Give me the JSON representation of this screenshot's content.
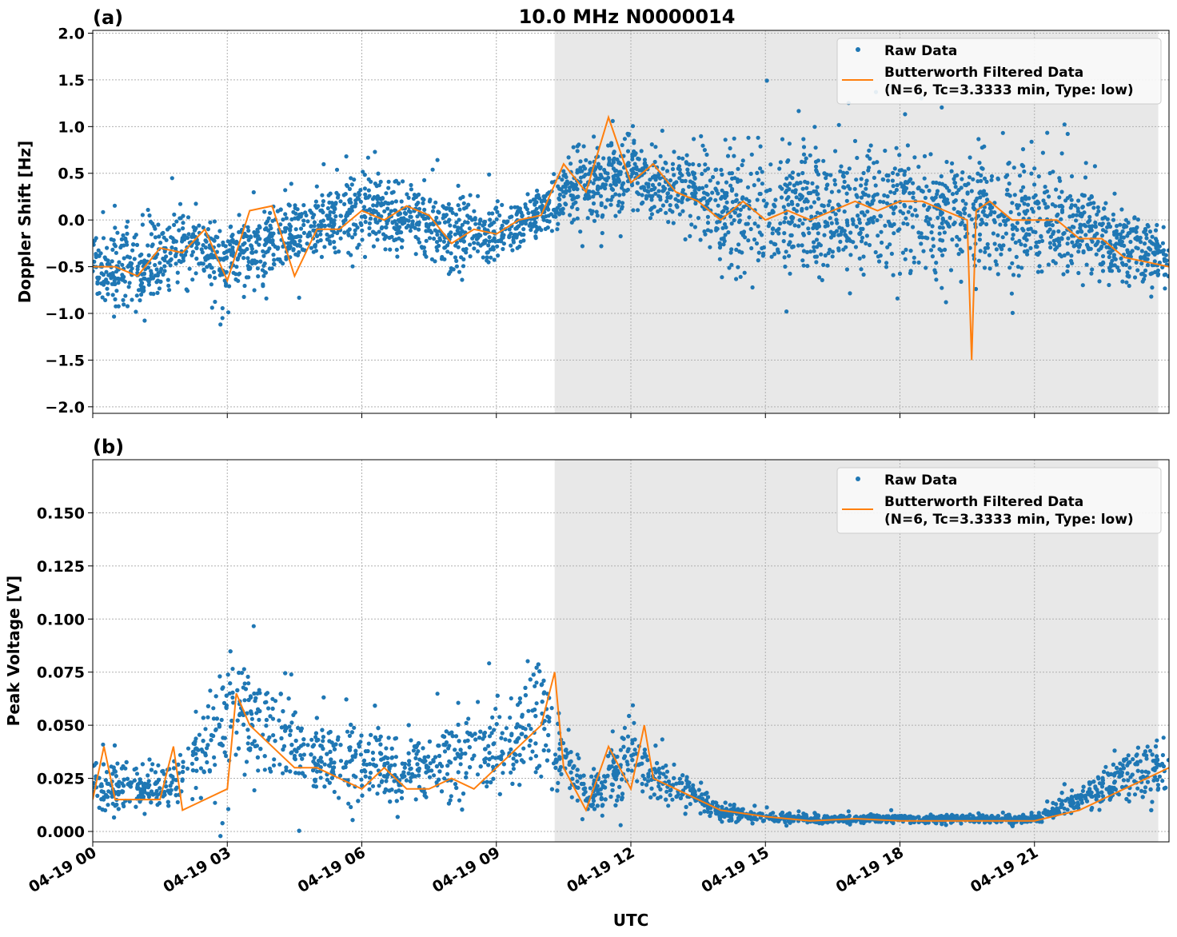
{
  "title": "10.0 MHz N0000014",
  "xlabel": "UTC",
  "shade_color": "#e8e8e8",
  "raw_color": "#1f77b4",
  "filtered_color": "#ff7f0e",
  "x_tick_labels": [
    "04-19 00",
    "04-19 03",
    "04-19 06",
    "04-19 09",
    "04-19 12",
    "04-19 15",
    "04-19 18",
    "04-19 21"
  ],
  "chart_data": [
    {
      "type": "scatter",
      "panel_label": "(a)",
      "ylabel": "Doppler Shift [Hz]",
      "xlim_hours": [
        0,
        24
      ],
      "ylim": [
        -2.07,
        2.03
      ],
      "yticks": [
        2.0,
        1.5,
        1.0,
        0.5,
        0.0,
        -0.5,
        -1.0,
        -1.5,
        -2.0
      ],
      "ytick_labels": [
        "2.0",
        "1.5",
        "1.0",
        "0.5",
        "0.0",
        "−0.5",
        "−1.0",
        "−1.5",
        "−2.0"
      ],
      "grid": true,
      "shaded_hours": [
        10.3,
        23.76
      ],
      "legend": {
        "placement": "top-right",
        "raw": "Raw Data",
        "filtered_line1": "Butterworth Filtered Data",
        "filtered_line2": "(N=6, Tc=3.3333 min, Type: low)"
      },
      "raw_envelope": {
        "x_hours": [
          0,
          1,
          2,
          3,
          4,
          5,
          6,
          7,
          8,
          9,
          10,
          11,
          12,
          13,
          14,
          15,
          16,
          17,
          18,
          19,
          20,
          21,
          22,
          23,
          24
        ],
        "low": [
          -0.9,
          -1.3,
          -0.8,
          -1.0,
          -0.8,
          -0.6,
          -0.4,
          -0.5,
          -0.7,
          -0.6,
          -0.2,
          -0.3,
          0.0,
          -0.3,
          -0.7,
          -0.9,
          -0.9,
          -0.9,
          -0.9,
          -0.9,
          -0.9,
          -0.8,
          -0.8,
          -0.9,
          -0.8
        ],
        "high": [
          0.0,
          0.1,
          0.3,
          0.2,
          0.4,
          0.5,
          0.6,
          0.6,
          0.4,
          0.3,
          0.4,
          1.2,
          1.0,
          0.9,
          1.0,
          1.1,
          1.1,
          1.1,
          1.1,
          1.0,
          1.0,
          0.9,
          0.7,
          0.3,
          0.0
        ]
      },
      "filtered": {
        "x_hours": [
          0,
          0.5,
          1,
          1.5,
          2,
          2.5,
          3,
          3.5,
          4,
          4.5,
          5,
          5.5,
          6,
          6.5,
          7,
          7.5,
          8,
          8.5,
          9,
          9.5,
          10,
          10.5,
          11,
          11.5,
          12,
          12.5,
          13,
          13.5,
          14,
          14.5,
          15,
          15.5,
          16,
          16.5,
          17,
          17.5,
          18,
          18.5,
          19,
          19.5,
          19.6,
          19.7,
          20,
          20.5,
          21,
          21.5,
          22,
          22.5,
          23,
          23.5,
          24
        ],
        "y": [
          -0.5,
          -0.5,
          -0.6,
          -0.3,
          -0.35,
          -0.1,
          -0.65,
          0.1,
          0.15,
          -0.6,
          -0.1,
          -0.1,
          0.1,
          0.0,
          0.15,
          0.05,
          -0.25,
          -0.1,
          -0.15,
          0.0,
          0.05,
          0.6,
          0.3,
          1.1,
          0.4,
          0.6,
          0.3,
          0.2,
          0.0,
          0.2,
          0.0,
          0.1,
          0.0,
          0.1,
          0.2,
          0.1,
          0.2,
          0.2,
          0.1,
          0.0,
          -1.5,
          0.1,
          0.2,
          0.0,
          0.0,
          0.0,
          -0.2,
          -0.2,
          -0.4,
          -0.45,
          -0.5
        ]
      }
    },
    {
      "type": "scatter",
      "panel_label": "(b)",
      "ylabel": "Peak Voltage [V]",
      "xlim_hours": [
        0,
        24
      ],
      "ylim": [
        -0.0049,
        0.175
      ],
      "yticks": [
        0.15,
        0.125,
        0.1,
        0.075,
        0.05,
        0.025,
        0.0
      ],
      "ytick_labels": [
        "0.150",
        "0.125",
        "0.100",
        "0.075",
        "0.050",
        "0.025",
        "0.000"
      ],
      "grid": true,
      "shaded_hours": [
        10.3,
        23.76
      ],
      "legend": {
        "placement": "top-right",
        "raw": "Raw Data",
        "filtered_line1": "Butterworth Filtered Data",
        "filtered_line2": "(N=6, Tc=3.3333 min, Type: low)"
      },
      "raw_envelope": {
        "x_hours": [
          0,
          1,
          2,
          3,
          4,
          5,
          6,
          7,
          8,
          9,
          10,
          11,
          12,
          13,
          14,
          15,
          16,
          17,
          18,
          19,
          20,
          21,
          22,
          23,
          24
        ],
        "low": [
          0.005,
          0.005,
          0.005,
          0.01,
          0.01,
          0.008,
          0.008,
          0.008,
          0.008,
          0.01,
          0.012,
          0.005,
          0.008,
          0.005,
          0.004,
          0.003,
          0.003,
          0.003,
          0.003,
          0.003,
          0.003,
          0.003,
          0.005,
          0.008,
          0.01
        ],
        "high": [
          0.04,
          0.035,
          0.04,
          0.11,
          0.09,
          0.06,
          0.055,
          0.05,
          0.06,
          0.07,
          0.1,
          0.03,
          0.06,
          0.035,
          0.015,
          0.01,
          0.009,
          0.009,
          0.009,
          0.009,
          0.009,
          0.009,
          0.025,
          0.045,
          0.05
        ]
      },
      "filtered": {
        "x_hours": [
          0,
          0.25,
          0.5,
          1,
          1.5,
          1.8,
          2,
          2.5,
          3,
          3.2,
          3.5,
          4,
          4.5,
          5,
          5.5,
          6,
          6.5,
          7,
          7.5,
          8,
          8.5,
          9,
          9.5,
          10,
          10.3,
          10.5,
          11,
          11.5,
          12,
          12.3,
          12.5,
          13,
          13.5,
          14,
          15,
          16,
          17,
          18,
          19,
          20,
          21,
          22,
          22.5,
          23,
          23.5,
          24
        ],
        "y": [
          0.015,
          0.04,
          0.015,
          0.015,
          0.015,
          0.04,
          0.01,
          0.015,
          0.02,
          0.065,
          0.05,
          0.04,
          0.03,
          0.03,
          0.025,
          0.02,
          0.03,
          0.02,
          0.02,
          0.025,
          0.02,
          0.03,
          0.04,
          0.05,
          0.075,
          0.03,
          0.01,
          0.04,
          0.02,
          0.05,
          0.025,
          0.02,
          0.015,
          0.01,
          0.007,
          0.005,
          0.006,
          0.005,
          0.005,
          0.005,
          0.005,
          0.01,
          0.015,
          0.02,
          0.025,
          0.03
        ]
      }
    }
  ]
}
